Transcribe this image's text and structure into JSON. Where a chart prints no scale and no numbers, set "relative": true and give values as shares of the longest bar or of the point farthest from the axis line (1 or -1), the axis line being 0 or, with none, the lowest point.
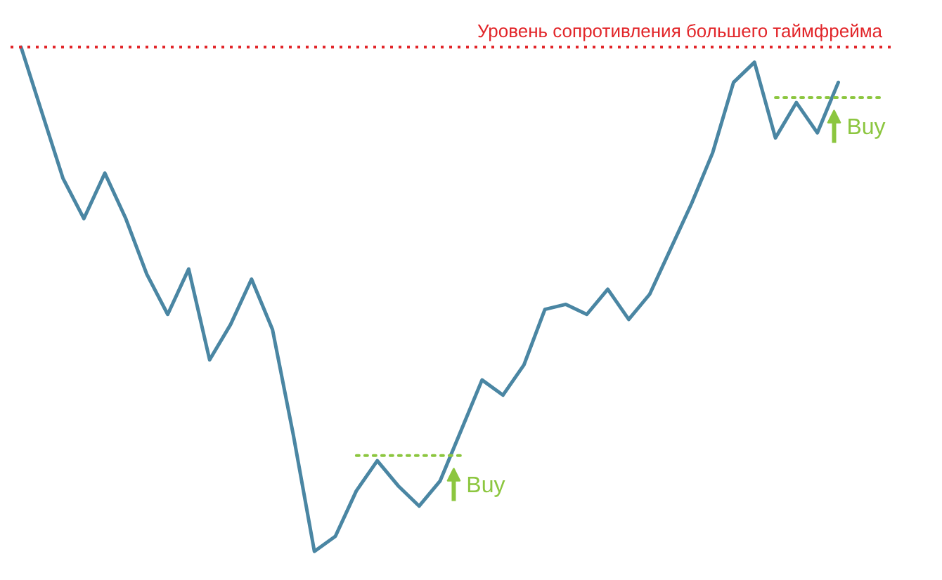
{
  "chart_data": {
    "type": "line",
    "relative": true,
    "categories": [
      null,
      null,
      null,
      null,
      null,
      null,
      null,
      null,
      null,
      null,
      null,
      null,
      null,
      null,
      null,
      null,
      null,
      null,
      null,
      null,
      null,
      null,
      null,
      null,
      null,
      null,
      null,
      null,
      null,
      null,
      null,
      null,
      null,
      null,
      null,
      null,
      null,
      null,
      null,
      null,
      null,
      null
    ],
    "series": [
      {
        "color": "#4a86a3",
        "line_style": "solid",
        "values": [
          1.0,
          0.87,
          0.74,
          0.66,
          0.75,
          0.66,
          0.55,
          0.47,
          0.56,
          0.38,
          0.45,
          0.54,
          0.44,
          0.23,
          0.0,
          0.03,
          0.12,
          0.18,
          0.13,
          0.09,
          0.14,
          0.24,
          0.34,
          0.31,
          0.37,
          0.48,
          0.49,
          0.47,
          0.52,
          0.46,
          0.51,
          0.6,
          0.69,
          0.79,
          0.93,
          0.97,
          0.82,
          0.89,
          0.83,
          0.93,
          null,
          null
        ]
      },
      {
        "color": "#8cc63f",
        "line_style": "dotted",
        "values": [
          null,
          null,
          null,
          null,
          null,
          null,
          null,
          null,
          null,
          null,
          null,
          null,
          null,
          null,
          null,
          null,
          0.19,
          0.19,
          0.19,
          0.19,
          0.19,
          0.19,
          null,
          null,
          null,
          null,
          null,
          null,
          null,
          null,
          null,
          null,
          null,
          null,
          null,
          null,
          null,
          null,
          null,
          null,
          null,
          null
        ]
      },
      {
        "color": "#8cc63f",
        "line_style": "dotted",
        "values": [
          null,
          null,
          null,
          null,
          null,
          null,
          null,
          null,
          null,
          null,
          null,
          null,
          null,
          null,
          null,
          null,
          null,
          null,
          null,
          null,
          null,
          null,
          null,
          null,
          null,
          null,
          null,
          null,
          null,
          null,
          null,
          null,
          null,
          null,
          null,
          null,
          0.9,
          0.9,
          0.9,
          0.9,
          0.9,
          0.9
        ]
      }
    ],
    "ref_lines": [
      {
        "axis": "y",
        "value": 1.0,
        "label": "Уровень сопротивления большего таймфрейма",
        "color": "#e2262a",
        "line_style": "dotted"
      }
    ],
    "annotations": [
      "Buy",
      "Buy"
    ]
  }
}
